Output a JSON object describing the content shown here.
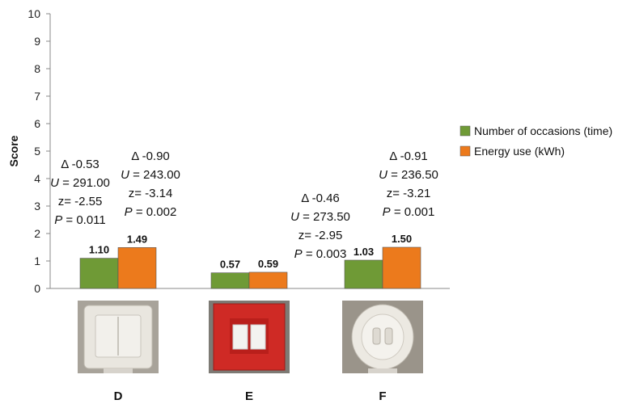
{
  "chart_data": {
    "type": "bar",
    "ylabel": "Score",
    "ylim": [
      0,
      10
    ],
    "yticks": [
      "0",
      "1",
      "2",
      "3",
      "4",
      "5",
      "6",
      "7",
      "8",
      "9",
      "10"
    ],
    "categories": [
      "D",
      "E",
      "F"
    ],
    "series": [
      {
        "name": "Number of occasions (time)",
        "color": "#6f9a36",
        "values": [
          1.1,
          0.57,
          1.03
        ],
        "labels": [
          "1.10",
          "0.57",
          "1.03"
        ]
      },
      {
        "name": "Energy use (kWh)",
        "color": "#ec7a1c",
        "values": [
          1.49,
          0.59,
          1.5
        ],
        "labels": [
          "1.49",
          "0.59",
          "1.50"
        ]
      }
    ],
    "legend_position": "right",
    "grid": false,
    "annotations": [
      {
        "category": "D",
        "series": 0,
        "lines": [
          "Δ -0.53",
          "U = 291.00",
          "z= -2.55",
          "P = 0.011"
        ]
      },
      {
        "category": "D",
        "series": 1,
        "lines": [
          "Δ -0.90",
          "U = 243.00",
          "z= -3.14",
          "P = 0.002"
        ]
      },
      {
        "category": "F",
        "series": 0,
        "lines": [
          "Δ -0.46",
          "U = 273.50",
          "z= -2.95",
          "P = 0.003"
        ]
      },
      {
        "category": "F",
        "series": 1,
        "lines": [
          "Δ -0.91",
          "U = 236.50",
          "z= -3.21",
          "P = 0.001"
        ]
      }
    ],
    "images": [
      {
        "category": "D",
        "icon": "double-rocker-switch-white"
      },
      {
        "category": "E",
        "icon": "double-rocker-switch-red"
      },
      {
        "category": "F",
        "icon": "round-double-switch-white"
      }
    ]
  }
}
